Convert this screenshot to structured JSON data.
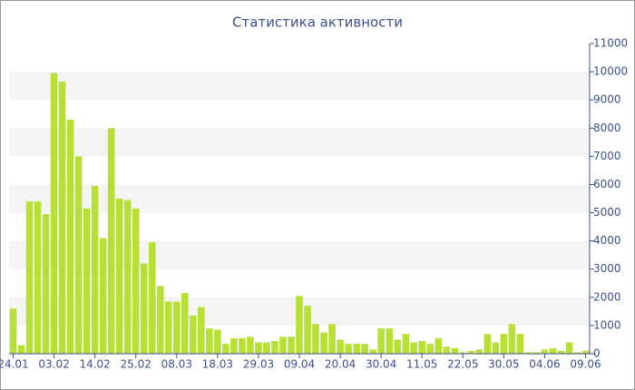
{
  "chart_data": {
    "type": "bar",
    "title": "Статистика активности",
    "categories": [
      "24.01",
      null,
      null,
      null,
      null,
      "03.02",
      null,
      null,
      null,
      null,
      "14.02",
      null,
      null,
      null,
      null,
      "25.02",
      null,
      null,
      null,
      null,
      "08.03",
      null,
      null,
      null,
      null,
      "18.03",
      null,
      null,
      null,
      null,
      "29.03",
      null,
      null,
      null,
      null,
      "09.04",
      null,
      null,
      null,
      null,
      "20.04",
      null,
      null,
      null,
      null,
      "30.04",
      null,
      null,
      null,
      null,
      "11.05",
      null,
      null,
      null,
      null,
      "22.05",
      null,
      null,
      null,
      null,
      "30.05",
      null,
      null,
      null,
      null,
      "04.06",
      null,
      null,
      null,
      null,
      "09.06"
    ],
    "values": [
      1600,
      300,
      5400,
      5400,
      4950,
      9950,
      9650,
      8300,
      7000,
      5150,
      5950,
      4100,
      8000,
      5500,
      5450,
      5150,
      3200,
      3950,
      2400,
      1850,
      1850,
      2150,
      1350,
      1650,
      900,
      850,
      350,
      550,
      550,
      600,
      400,
      400,
      450,
      600,
      600,
      2050,
      1700,
      1050,
      750,
      1050,
      500,
      350,
      350,
      350,
      150,
      900,
      900,
      500,
      700,
      400,
      450,
      350,
      550,
      250,
      200,
      50,
      100,
      150,
      700,
      400,
      700,
      1050,
      700,
      50,
      50,
      150,
      200,
      100,
      400,
      50,
      100
    ],
    "color": "#b7df35",
    "ylim": [
      0,
      11000
    ],
    "yticks": [
      0,
      1000,
      2000,
      3000,
      4000,
      5000,
      6000,
      7000,
      8000,
      9000,
      10000,
      11000
    ],
    "grid": true
  }
}
